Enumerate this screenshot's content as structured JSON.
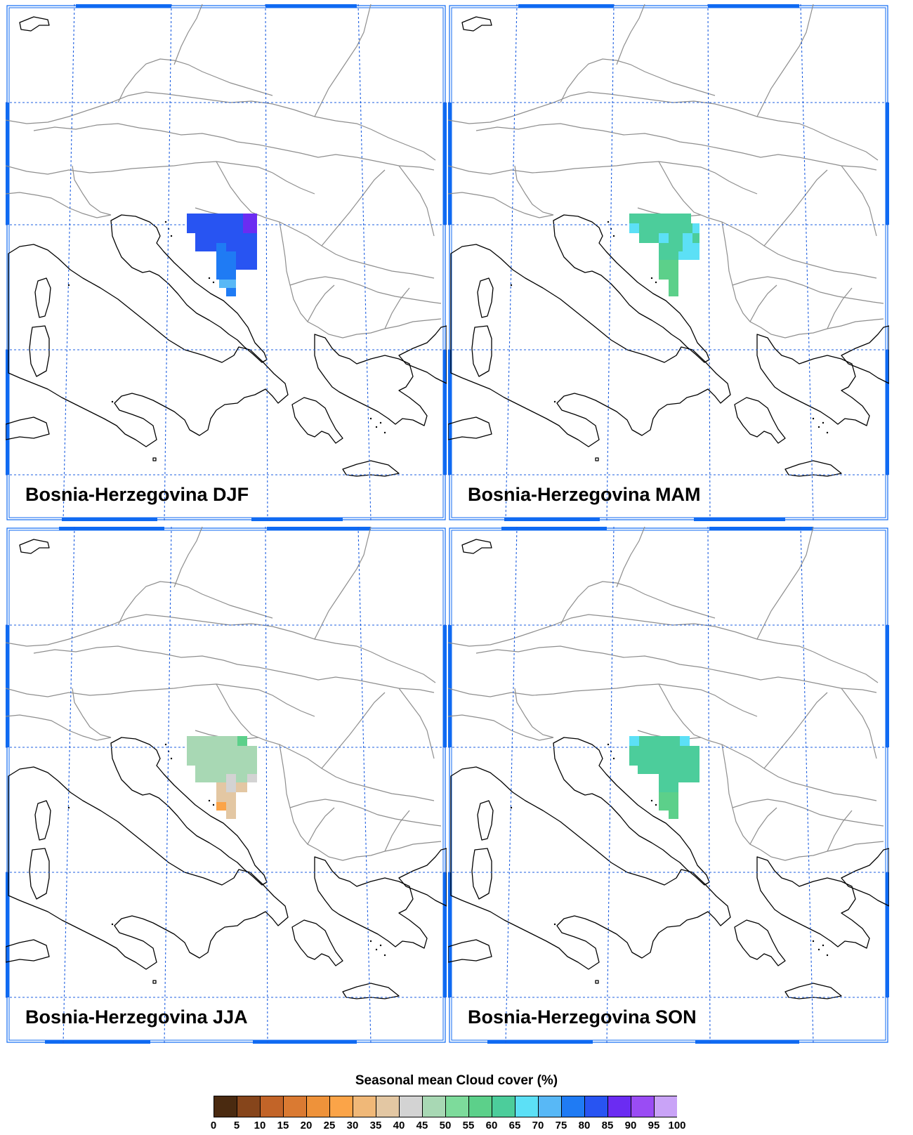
{
  "panels": [
    {
      "title": "Bosnia-Herzegovina DJF",
      "season": "DJF"
    },
    {
      "title": "Bosnia-Herzegovina MAM",
      "season": "MAM"
    },
    {
      "title": "Bosnia-Herzegovina JJA",
      "season": "JJA"
    },
    {
      "title": "Bosnia-Herzegovina SON",
      "season": "SON"
    }
  ],
  "legend": {
    "title": "Seasonal mean Cloud cover (%)",
    "ticks": [
      "0",
      "5",
      "10",
      "15",
      "20",
      "25",
      "30",
      "35",
      "40",
      "45",
      "50",
      "55",
      "60",
      "65",
      "70",
      "75",
      "80",
      "85",
      "90",
      "95",
      "100"
    ],
    "colors": [
      "#4a2a10",
      "#86451b",
      "#c26428",
      "#da7a32",
      "#ee923a",
      "#fba448",
      "#f0b878",
      "#e3c7a3",
      "#d3d3d3",
      "#a8d8b4",
      "#7ddb9b",
      "#5cd08a",
      "#4ccd9b",
      "#5ce0f6",
      "#58b8f6",
      "#1f7bf4",
      "#2854f2",
      "#6b2cf2",
      "#9a4cf4",
      "#c9a3f7"
    ]
  },
  "colors": {
    "frame": "#0f6af2",
    "coast": "#000000",
    "borders": "#8e8e8e",
    "grid": "#1e5fe0"
  },
  "map_data": {
    "region": "Bosnia-Herzegovina",
    "variable": "Seasonal mean Cloud cover (%)",
    "seasons": [
      "DJF",
      "MAM",
      "JJA",
      "SON"
    ],
    "dominant_classes": {
      "DJF": [
        "75-80",
        "80-85",
        "70-75",
        "65-70"
      ],
      "MAM": [
        "60-65",
        "65-70",
        "55-60"
      ],
      "JJA": [
        "45-50",
        "40-45",
        "35-40",
        "25-30",
        "50-55"
      ],
      "SON": [
        "60-65",
        "55-60",
        "65-70"
      ]
    }
  }
}
